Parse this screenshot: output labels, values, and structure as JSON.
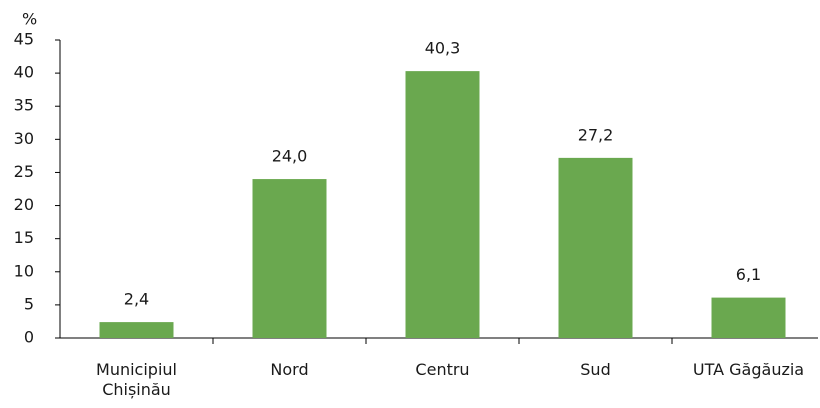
{
  "chart_data": {
    "type": "bar",
    "y_label": "%",
    "categories": [
      "Municipiul Chișinău",
      "Nord",
      "Centru",
      "Sud",
      "UTA Găgăuzia"
    ],
    "values": [
      2.4,
      24.0,
      40.3,
      27.2,
      6.1
    ],
    "value_labels": [
      "2,4",
      "24,0",
      "40,3",
      "27,2",
      "6,1"
    ],
    "color": "#6aa84f",
    "ylim": [
      0,
      45
    ],
    "yticks": [
      0,
      5,
      10,
      15,
      20,
      25,
      30,
      35,
      40,
      45
    ],
    "grid": false
  }
}
